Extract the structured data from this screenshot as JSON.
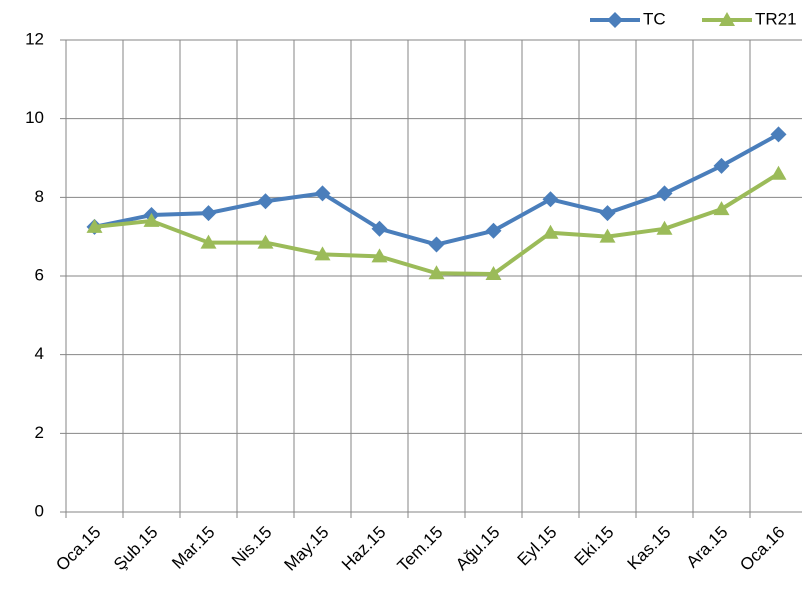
{
  "chart_data": {
    "type": "line",
    "categories": [
      "Oca.15",
      "Şub.15",
      "Mar.15",
      "Nis.15",
      "May.15",
      "Haz.15",
      "Tem.15",
      "Ağu.15",
      "Eyl.15",
      "Eki.15",
      "Kas.15",
      "Ara.15",
      "Oca.16"
    ],
    "series": [
      {
        "name": "TC",
        "color": "#4a7ebb",
        "marker": "diamond",
        "values": [
          7.25,
          7.55,
          7.6,
          7.9,
          8.1,
          7.2,
          6.8,
          7.15,
          7.95,
          7.6,
          8.1,
          8.8,
          9.6
        ]
      },
      {
        "name": "TR21",
        "color": "#9bbb59",
        "marker": "triangle",
        "values": [
          7.25,
          7.4,
          6.85,
          6.85,
          6.55,
          6.5,
          6.07,
          6.05,
          7.1,
          7.0,
          7.2,
          7.7,
          8.6
        ]
      }
    ],
    "ylim": [
      0,
      12
    ],
    "yticks": [
      0,
      2,
      4,
      6,
      8,
      10,
      12
    ],
    "grid": true,
    "legend": "top-right"
  }
}
